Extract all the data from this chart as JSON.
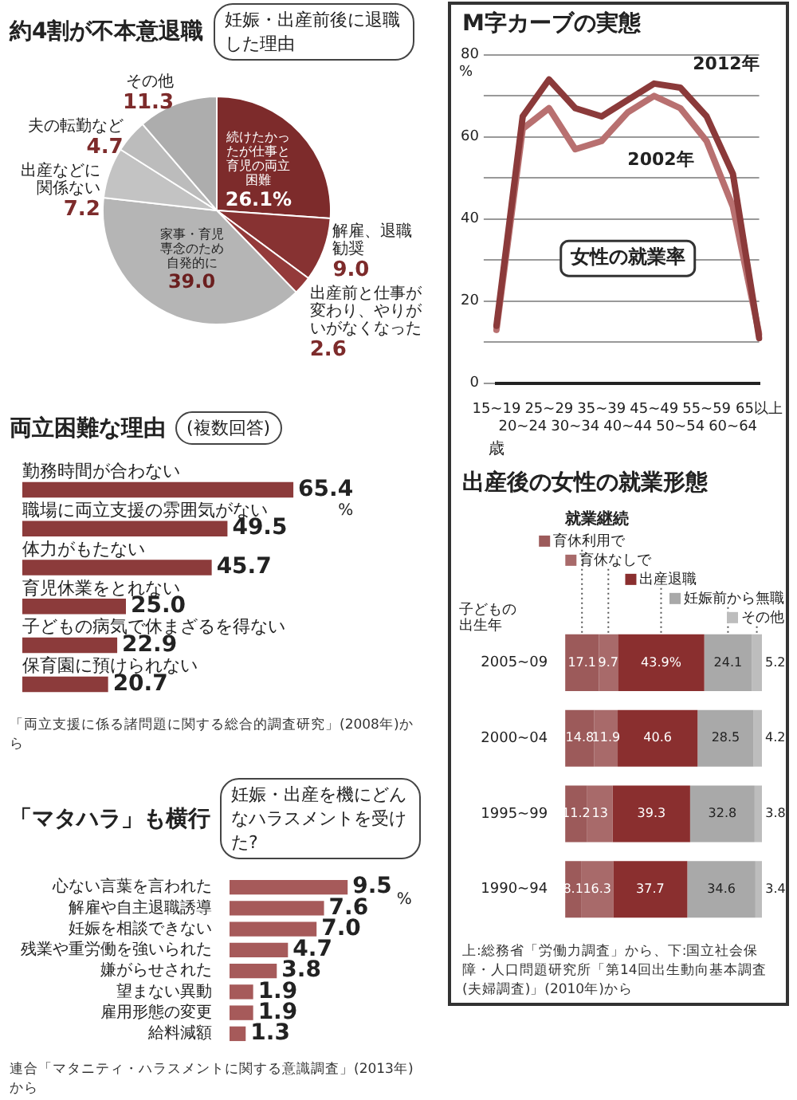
{
  "chart_data": [
    {
      "type": "pie",
      "title": "約4割が不本意退職",
      "subtitle": "妊娠・出産前後に退職した理由",
      "categories": [
        "続けたかったが仕事と育児の両立困難",
        "解雇、退職勧奨",
        "出産前と仕事が変わり、やりがいがなくなった",
        "家事・育児専念のため自発的に",
        "出産などに関係ない",
        "夫の転勤など",
        "その他"
      ],
      "values": [
        26.1,
        9.0,
        2.6,
        39.0,
        7.2,
        4.7,
        11.3
      ],
      "colors": [
        "#7d2b2b",
        "#873232",
        "#943a3a",
        "#b5b5b5",
        "#c3c3c3",
        "#bcbcbc",
        "#adadad"
      ],
      "value_labels": [
        "26.1%",
        "9.0",
        "2.6",
        "39.0",
        "7.2",
        "4.7",
        "11.3"
      ]
    },
    {
      "type": "bar",
      "orientation": "horizontal",
      "title": "両立困難な理由",
      "subtitle": "(複数回答)",
      "categories": [
        "勤務時間が合わない",
        "職場に両立支援の雰囲気がない",
        "体力がもたない",
        "育児休業をとれない",
        "子どもの病気で休まざるを得ない",
        "保育園に預けられない"
      ],
      "values": [
        65.4,
        49.5,
        45.7,
        25.0,
        22.9,
        20.7
      ],
      "color": "#8c3b3b",
      "tick_labels": "y",
      "value_labels": [
        "65.4",
        "49.5",
        "45.7",
        "25.0",
        "22.9",
        "20.7"
      ],
      "xlabel": "%",
      "annotations": [
        "「両立支援に係る諸問題に関する総合的調査研究」(2008年)から"
      ]
    },
    {
      "type": "bar",
      "orientation": "horizontal",
      "title": "「マタハラ」も横行",
      "subtitle": "妊娠・出産を機にどんなハラスメントを受けた?",
      "categories": [
        "心ない言葉を言われた",
        "解雇や自主退職誘導",
        "妊娠を相談できない",
        "残業や重労働を強いられた",
        "嫌がらせされた",
        "望まない異動",
        "雇用形態の変更",
        "給料減額"
      ],
      "values": [
        9.5,
        7.6,
        7.0,
        4.7,
        3.8,
        1.9,
        1.9,
        1.3
      ],
      "color": "#a65a5a",
      "tick_labels": "y",
      "value_labels": [
        "9.5",
        "7.6",
        "7.0",
        "4.7",
        "3.8",
        "1.9",
        "1.9",
        "1.3"
      ],
      "xlabel": "%",
      "annotations": [
        "連合「マタニティ・ハラスメントに関する意識調査」(2013年)から"
      ]
    },
    {
      "type": "line",
      "title": "M字カーブの実態",
      "categories": [
        "15~19",
        "20~24",
        "25~29",
        "30~34",
        "35~39",
        "40~44",
        "45~49",
        "50~54",
        "55~59",
        "60~64",
        "65以上"
      ],
      "series": [
        {
          "name": "2012年",
          "color": "#8b3a3a",
          "values": [
            14,
            65,
            74,
            67,
            65,
            69,
            73,
            72,
            65,
            51,
            11
          ]
        },
        {
          "name": "2002年",
          "color": "#b87070",
          "values": [
            13,
            62,
            67,
            57,
            59,
            66,
            70,
            67,
            59,
            43,
            12
          ]
        }
      ],
      "ylim": [
        0,
        80
      ],
      "yticks": [
        0,
        {
          "value": 10,
          "label": null
        },
        20,
        {
          "value": 30,
          "label": null
        },
        40,
        {
          "value": 50,
          "label": null
        },
        60,
        {
          "value": 70,
          "label": null
        },
        80
      ],
      "grid": "y",
      "marker": "none",
      "ylabel": "%",
      "xlabel": "歳",
      "annotations": [
        "女性の就業率"
      ]
    },
    {
      "type": "bar",
      "orientation": "horizontal",
      "stacked": true,
      "title": "出産後の女性の就業形態",
      "categories": [
        "2005~09",
        "2000~04",
        "1995~99",
        "1990~94"
      ],
      "series": [
        {
          "name": "育休利用で",
          "color": "#9c5a5a",
          "values": [
            17.1,
            14.8,
            11.2,
            8.1
          ]
        },
        {
          "name": "育休なしで",
          "color": "#a86a6a",
          "values": [
            9.7,
            11.9,
            13.0,
            16.3
          ]
        },
        {
          "name": "出産退職",
          "color": "#8a2f2f",
          "values": [
            43.9,
            40.6,
            39.3,
            37.7
          ],
          "value_labels": [
            "43.9%",
            "40.6",
            "39.3",
            "37.7"
          ]
        },
        {
          "name": "妊娠前から無職",
          "color": "#a9a9a9",
          "values": [
            24.1,
            28.5,
            32.8,
            34.6
          ]
        },
        {
          "name": "その他",
          "color": "#bdbdbd",
          "values": [
            5.2,
            4.2,
            3.8,
            3.4
          ]
        }
      ],
      "xlim": [
        0,
        100
      ],
      "tick_labels": "y",
      "legend": "top",
      "ylabel": "子どもの出生年",
      "data_labels": true,
      "annotations": [
        "就業継続",
        "上:総務省「労働力調査」から、下:国立社会保障・人口問題研究所「第14回出生動向基本調査(夫婦調査)」(2010年)から"
      ]
    }
  ]
}
